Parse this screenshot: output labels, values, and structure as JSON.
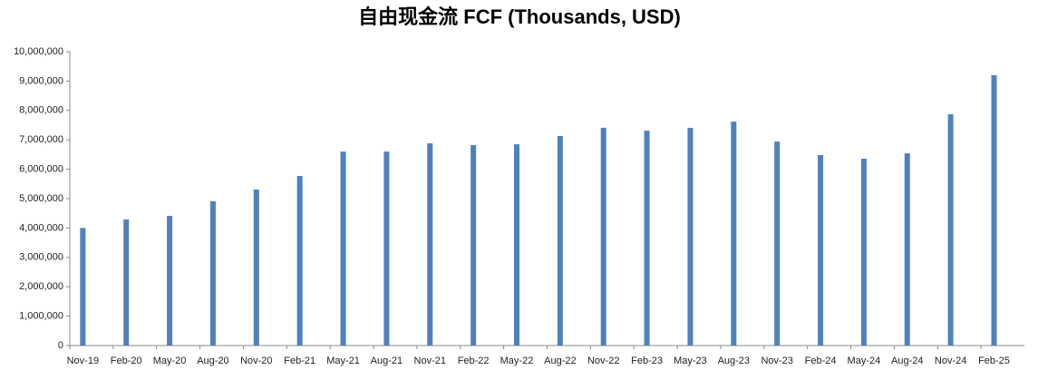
{
  "chart_data": {
    "type": "bar",
    "title": "自由现金流 FCF (Thousands, USD)",
    "categories": [
      "Nov-19",
      "Feb-20",
      "May-20",
      "Aug-20",
      "Nov-20",
      "Feb-21",
      "May-21",
      "Aug-21",
      "Nov-21",
      "Feb-22",
      "May-22",
      "Aug-22",
      "Nov-22",
      "Feb-23",
      "May-23",
      "Aug-23",
      "Nov-23",
      "Feb-24",
      "May-24",
      "Aug-24",
      "Nov-24",
      "Feb-25"
    ],
    "values": [
      4000000,
      4290000,
      4410000,
      4910000,
      5310000,
      5770000,
      6600000,
      6600000,
      6880000,
      6820000,
      6850000,
      7130000,
      7410000,
      7310000,
      7410000,
      7620000,
      6940000,
      6480000,
      6360000,
      6540000,
      7870000,
      9200000
    ],
    "color": "#4f81bd",
    "ylim": [
      0,
      10000000
    ],
    "yticks": [
      0,
      {
        "value": 1000000,
        "label": "1,000,000"
      },
      {
        "value": 2000000,
        "label": "2,000,000"
      },
      {
        "value": 3000000,
        "label": "3,000,000"
      },
      {
        "value": 4000000,
        "label": "4,000,000"
      },
      {
        "value": 5000000,
        "label": "5,000,000"
      },
      {
        "value": 6000000,
        "label": "6,000,000"
      },
      {
        "value": 7000000,
        "label": "7,000,000"
      },
      {
        "value": 8000000,
        "label": "8,000,000"
      },
      {
        "value": 9000000,
        "label": "9,000,000"
      },
      {
        "value": 10000000,
        "label": "10,000,000"
      }
    ],
    "grid": false
  }
}
